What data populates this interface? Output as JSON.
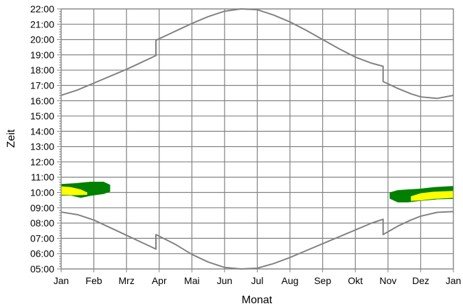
{
  "chart_data": {
    "type": "area",
    "title": "",
    "xlabel": "Monat",
    "ylabel": "Zeit",
    "x_tick_labels": [
      "Jan",
      "Feb",
      "Mrz",
      "Apr",
      "Mai",
      "Jun",
      "Jul",
      "Aug",
      "Sep",
      "Okt",
      "Nov",
      "Dez",
      "Jan"
    ],
    "y_tick_labels": [
      "05:00",
      "06:00",
      "07:00",
      "08:00",
      "09:00",
      "10:00",
      "11:00",
      "12:00",
      "13:00",
      "14:00",
      "15:00",
      "16:00",
      "17:00",
      "18:00",
      "19:00",
      "20:00",
      "21:00",
      "22:00"
    ],
    "xlim": [
      0,
      12
    ],
    "ylim": [
      5,
      22
    ],
    "grid": true,
    "colors": {
      "grid": "#808080",
      "curve": "#808080",
      "green": "#008000",
      "yellow": "#ffff00",
      "background": "#ffffff"
    },
    "series": [
      {
        "x": [
          0,
          0.5,
          1,
          1.5,
          2,
          2.5,
          2.9,
          2.9,
          3.5,
          4,
          4.5,
          5,
          5.5,
          6,
          6.5,
          7,
          7.5,
          8,
          8.5,
          9,
          9.5,
          9.85,
          9.85,
          10.3,
          10.7,
          11,
          11.5,
          12
        ],
        "y": [
          16.35,
          16.7,
          17.15,
          17.6,
          18.05,
          18.55,
          18.95,
          19.95,
          20.55,
          21.05,
          21.5,
          21.85,
          22,
          21.95,
          21.6,
          21.15,
          20.6,
          20,
          19.4,
          18.85,
          18.45,
          18.25,
          17.25,
          16.8,
          16.45,
          16.25,
          16.15,
          16.35
        ]
      },
      {
        "x": [
          0,
          0.5,
          1,
          1.5,
          2,
          2.5,
          2.9,
          2.9,
          3.5,
          4,
          4.5,
          5,
          5.5,
          6,
          6.5,
          7,
          7.5,
          8,
          8.5,
          9,
          9.5,
          9.85,
          9.85,
          10.3,
          10.7,
          11,
          11.5,
          12
        ],
        "y": [
          8.72,
          8.55,
          8.2,
          7.7,
          7.2,
          6.7,
          6.3,
          7.25,
          6.6,
          5.95,
          5.45,
          5.1,
          5,
          5.05,
          5.35,
          5.75,
          6.2,
          6.65,
          7.1,
          7.55,
          8,
          8.25,
          7.25,
          7.8,
          8.2,
          8.45,
          8.7,
          8.75
        ]
      }
    ],
    "regions": [
      {
        "color": "green",
        "x": [
          0,
          0.4,
          0.9,
          1.3,
          1.5,
          1.5,
          1.3,
          0.9,
          0.6,
          0.3,
          0
        ],
        "y": [
          10.55,
          10.6,
          10.7,
          10.7,
          10.5,
          10.05,
          9.9,
          9.78,
          9.65,
          9.8,
          9.8
        ]
      },
      {
        "color": "yellow",
        "x": [
          0,
          0.3,
          0.6,
          0.8,
          0.8,
          0.5,
          0.3,
          0
        ],
        "y": [
          10.4,
          10.35,
          10.2,
          10,
          9.85,
          9.82,
          9.82,
          9.85
        ]
      },
      {
        "color": "green",
        "x": [
          10.05,
          10.3,
          10.6,
          11,
          11.4,
          12,
          12,
          11.5,
          11,
          10.6,
          10.3,
          10.05
        ],
        "y": [
          10,
          10.15,
          10.2,
          10.25,
          10.35,
          10.42,
          9.58,
          9.55,
          9.45,
          9.35,
          9.35,
          9.6
        ]
      },
      {
        "color": "yellow",
        "x": [
          10.7,
          11,
          11.4,
          12,
          12,
          11.4,
          11,
          10.7
        ],
        "y": [
          9.75,
          9.95,
          10.05,
          10.1,
          9.65,
          9.58,
          9.48,
          9.45
        ]
      }
    ]
  }
}
